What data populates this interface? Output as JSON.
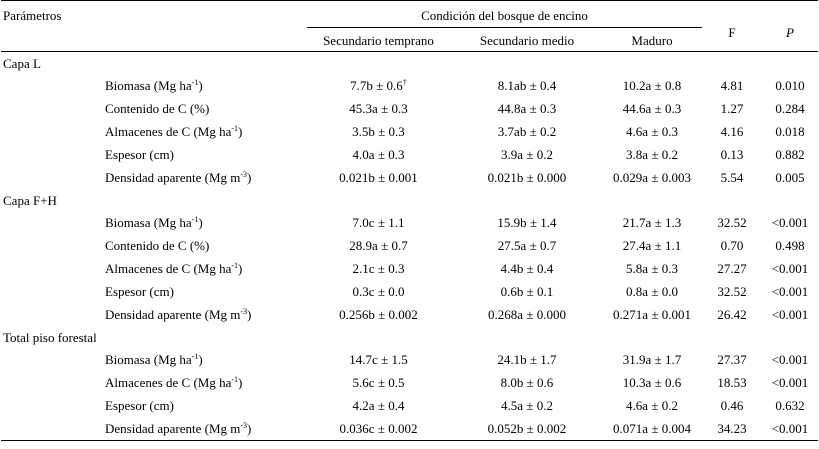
{
  "header": {
    "parametros": "Parámetros",
    "group_title": "Condición del bosque de encino",
    "col_secundario_temprano": "Secundario temprano",
    "col_secundario_medio": "Secundario medio",
    "col_maduro": "Maduro",
    "col_f": "F",
    "col_p": "P"
  },
  "sections": [
    {
      "title": "Capa L",
      "rows": [
        {
          "param": "Biomasa (Mg ha",
          "sup": "-1",
          "close": ")",
          "st": "7.7b ± 0.6",
          "st_sup": "†",
          "sm": "8.1ab ± 0.4",
          "ma": "10.2a ± 0.8",
          "f": "4.81",
          "p": "0.010"
        },
        {
          "param": "Contenido de C (%)",
          "sup": "",
          "close": "",
          "st": "45.3a ± 0.3",
          "st_sup": "",
          "sm": "44.8a ± 0.3",
          "ma": "44.6a ± 0.3",
          "f": "1.27",
          "p": "0.284"
        },
        {
          "param": "Almacenes de C (Mg ha",
          "sup": "-1",
          "close": ")",
          "st": "3.5b ± 0.3",
          "st_sup": "",
          "sm": "3.7ab ± 0.2",
          "ma": "4.6a ± 0.3",
          "f": "4.16",
          "p": "0.018"
        },
        {
          "param": "Espesor (cm)",
          "sup": "",
          "close": "",
          "st": "4.0a ± 0.3",
          "st_sup": "",
          "sm": "3.9a ± 0.2",
          "ma": "3.8a ± 0.2",
          "f": "0.13",
          "p": "0.882"
        },
        {
          "param": "Densidad aparente (Mg m",
          "sup": "-3",
          "close": ")",
          "st": "0.021b ± 0.001",
          "st_sup": "",
          "sm": "0.021b ± 0.000",
          "ma": "0.029a ± 0.003",
          "f": "5.54",
          "p": "0.005"
        }
      ]
    },
    {
      "title": "Capa F+H",
      "rows": [
        {
          "param": "Biomasa (Mg ha",
          "sup": "-1",
          "close": ")",
          "st": "7.0c ± 1.1",
          "st_sup": "",
          "sm": "15.9b ± 1.4",
          "ma": "21.7a ± 1.3",
          "f": "32.52",
          "p": "<0.001"
        },
        {
          "param": "Contenido de C (%)",
          "sup": "",
          "close": "",
          "st": "28.9a ± 0.7",
          "st_sup": "",
          "sm": "27.5a ± 0.7",
          "ma": "27.4a ± 1.1",
          "f": "0.70",
          "p": "0.498"
        },
        {
          "param": "Almacenes de C (Mg ha",
          "sup": "-1",
          "close": ")",
          "st": "2.1c ± 0.3",
          "st_sup": "",
          "sm": "4.4b ± 0.4",
          "ma": "5.8a ± 0.3",
          "f": "27.27",
          "p": "<0.001"
        },
        {
          "param": "Espesor (cm)",
          "sup": "",
          "close": "",
          "st": "0.3c ± 0.0",
          "st_sup": "",
          "sm": "0.6b ± 0.1",
          "ma": "0.8a ± 0.0",
          "f": "32.52",
          "p": "<0.001"
        },
        {
          "param": "Densidad aparente (Mg m",
          "sup": "-3",
          "close": ")",
          "st": "0.256b ± 0.002",
          "st_sup": "",
          "sm": "0.268a ± 0.000",
          "ma": "0.271a ± 0.001",
          "f": "26.42",
          "p": "<0.001"
        }
      ]
    },
    {
      "title": "Total piso forestal",
      "rows": [
        {
          "param": "Biomasa (Mg ha",
          "sup": "-1",
          "close": ")",
          "st": "14.7c ± 1.5",
          "st_sup": "",
          "sm": "24.1b ± 1.7",
          "ma": "31.9a ± 1.7",
          "f": "27.37",
          "p": "<0.001"
        },
        {
          "param": "Almacenes de C (Mg ha",
          "sup": "-1",
          "close": ")",
          "st": "5.6c ± 0.5",
          "st_sup": "",
          "sm": "8.0b ± 0.6",
          "ma": "10.3a ± 0.6",
          "f": "18.53",
          "p": "<0.001"
        },
        {
          "param": "Espesor (cm)",
          "sup": "",
          "close": "",
          "st": "4.2a ± 0.4",
          "st_sup": "",
          "sm": "4.5a ± 0.2",
          "ma": "4.6a ± 0.2",
          "f": "0.46",
          "p": "0.632"
        },
        {
          "param": "Densidad aparente (Mg m",
          "sup": "-3",
          "close": ")",
          "st": "0.036c ± 0.002",
          "st_sup": "",
          "sm": "0.052b ± 0.002",
          "ma": "0.071a ± 0.004",
          "f": "34.23",
          "p": "<0.001"
        }
      ]
    }
  ]
}
